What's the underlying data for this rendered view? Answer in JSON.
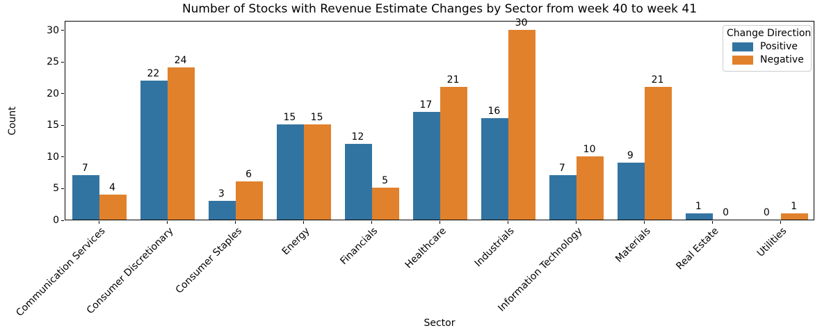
{
  "chart_data": {
    "type": "bar",
    "title": "Number of Stocks with Revenue Estimate Changes by Sector from week 40 to week 41",
    "xlabel": "Sector",
    "ylabel": "Count",
    "categories": [
      "Communication Services",
      "Consumer Discretionary",
      "Consumer Staples",
      "Energy",
      "Financials",
      "Healthcare",
      "Industrials",
      "Information Technology",
      "Materials",
      "Real Estate",
      "Utilities"
    ],
    "series": [
      {
        "name": "Positive",
        "color": "#3274a1",
        "values": [
          7,
          22,
          3,
          15,
          12,
          17,
          16,
          7,
          9,
          1,
          0
        ]
      },
      {
        "name": "Negative",
        "color": "#e1812c",
        "values": [
          4,
          24,
          6,
          15,
          5,
          21,
          30,
          10,
          21,
          0,
          1
        ]
      }
    ],
    "y_ticks": [
      0,
      5,
      10,
      15,
      20,
      25,
      30
    ],
    "ylim": [
      0,
      31.5
    ],
    "grid": false,
    "bar_value_labels": true,
    "legend_title": "Change Direction",
    "legend_position": "upper right",
    "frame_color": "#000000",
    "background_color": "#ffffff"
  }
}
